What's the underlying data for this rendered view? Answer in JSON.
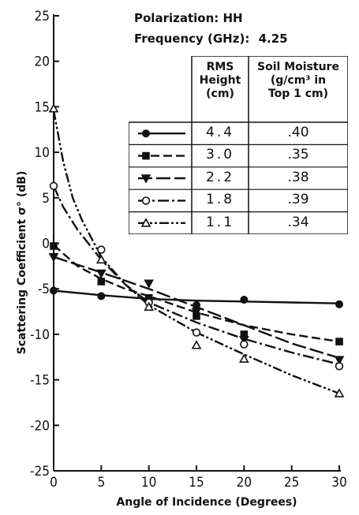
{
  "chart_data": {
    "type": "line",
    "info": {
      "polarization_label": "Polarization:",
      "polarization_value": "HH",
      "frequency_label": "Frequency (GHz):",
      "frequency_value": "4.25"
    },
    "xlabel": "Angle of Incidence (Degrees)",
    "ylabel": "Scattering Coefficient σ° (dB)",
    "xlim": [
      0,
      30
    ],
    "ylim": [
      -25,
      25
    ],
    "x_ticks": [
      "0",
      "5",
      "10",
      "15",
      "20",
      "25",
      "30"
    ],
    "y_ticks": [
      "25",
      "20",
      "15",
      "10",
      "5",
      "0",
      "-5",
      "-10",
      "-15",
      "-20",
      "-25"
    ],
    "legend": {
      "col1_header": [
        "RMS",
        "Height",
        "(cm)"
      ],
      "col2_header": [
        "Soil Moisture",
        "(g/cm³ in",
        "Top 1 cm)"
      ]
    },
    "series": [
      {
        "rms_height": "4.4",
        "soil_moisture": ".40",
        "marker": "filled-circle",
        "dash": "solid",
        "x": [
          0,
          5,
          10,
          15,
          20,
          30
        ],
        "y": [
          -5.2,
          -5.8,
          -6.2,
          -6.8,
          -6.2,
          -6.7
        ]
      },
      {
        "rms_height": "3.0",
        "soil_moisture": ".35",
        "marker": "filled-square",
        "dash": "dashed",
        "x": [
          0,
          5,
          10,
          15,
          20,
          30
        ],
        "y": [
          -0.3,
          -4.2,
          -6.0,
          -8.0,
          -10.0,
          -10.8
        ]
      },
      {
        "rms_height": "2.2",
        "soil_moisture": ".38",
        "marker": "filled-triangle-down",
        "dash": "long-dash",
        "x": [
          0,
          5,
          10,
          15,
          20,
          30
        ],
        "y": [
          -1.5,
          -3.3,
          -4.4,
          -7.5,
          -10.6,
          -12.8
        ]
      },
      {
        "rms_height": "1.8",
        "soil_moisture": ".39",
        "marker": "open-circle",
        "dash": "dash-dot",
        "x": [
          0,
          5,
          10,
          15,
          20,
          30
        ],
        "y": [
          6.3,
          -0.7,
          -6.5,
          -9.8,
          -11.1,
          -13.5
        ]
      },
      {
        "rms_height": "1.1",
        "soil_moisture": ".34",
        "marker": "open-triangle-up",
        "dash": "dash-dot-dot",
        "x": [
          0,
          5,
          10,
          15,
          20,
          30
        ],
        "y": [
          14.8,
          -1.8,
          -7.0,
          -11.2,
          -12.7,
          -16.5
        ]
      }
    ],
    "fit_curves": [
      {
        "series": 0,
        "x": [
          0,
          5,
          10,
          15,
          20,
          25,
          30
        ],
        "y": [
          -5.2,
          -5.7,
          -6.1,
          -6.3,
          -6.4,
          -6.5,
          -6.6
        ]
      },
      {
        "series": 1,
        "x": [
          0,
          2.5,
          5,
          7.5,
          10,
          12.5,
          15,
          20,
          25,
          30
        ],
        "y": [
          -0.2,
          -2.5,
          -3.9,
          -5.0,
          -5.8,
          -6.7,
          -7.6,
          -9.0,
          -10.0,
          -10.8
        ]
      },
      {
        "series": 2,
        "x": [
          0,
          5,
          10,
          15,
          20,
          25,
          30
        ],
        "y": [
          -1.5,
          -3.2,
          -5.0,
          -7.0,
          -9.0,
          -11.0,
          -12.6
        ]
      },
      {
        "series": 3,
        "x": [
          0,
          1,
          2.5,
          5,
          7.5,
          10,
          15,
          20,
          25,
          30
        ],
        "y": [
          6.3,
          4.0,
          1.5,
          -1.8,
          -4.5,
          -6.5,
          -8.7,
          -10.5,
          -12.0,
          -13.3
        ]
      },
      {
        "series": 4,
        "x": [
          0,
          0.5,
          1,
          2,
          3,
          5,
          7.5,
          10,
          15,
          20,
          25,
          30
        ],
        "y": [
          14.6,
          11.8,
          9.0,
          5.0,
          2.5,
          -1.5,
          -4.5,
          -6.8,
          -9.8,
          -12.2,
          -14.5,
          -16.5
        ]
      }
    ]
  }
}
